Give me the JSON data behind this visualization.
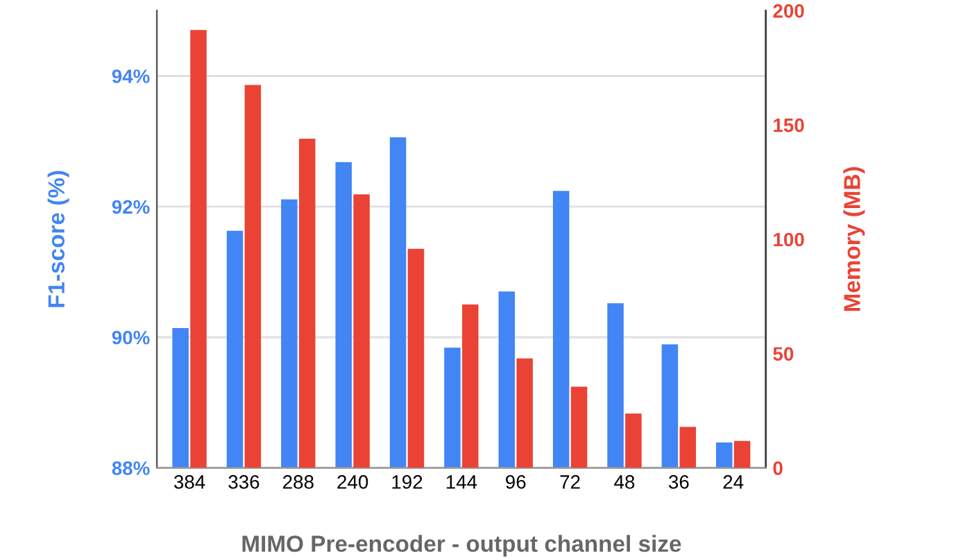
{
  "chart_data": {
    "type": "bar",
    "xlabel": "MIMO Pre-encoder - output channel size",
    "ylabel": "F1-score (%)",
    "y2label": "Memory (MB)",
    "categories": [
      "384",
      "336",
      "288",
      "240",
      "192",
      "144",
      "96",
      "72",
      "48",
      "36",
      "24"
    ],
    "series": [
      {
        "color": "#4285f4",
        "values": [
          90.14,
          91.63,
          92.11,
          92.68,
          93.06,
          89.84,
          90.7,
          92.24,
          90.52,
          89.89,
          88.39
        ]
      },
      {
        "color": "#ea4335",
        "axis": "y2",
        "values": [
          191.5,
          167.5,
          144,
          119.6,
          95.8,
          71.5,
          47.9,
          35.5,
          23.8,
          17.9,
          11.8
        ]
      }
    ],
    "ylim": [
      88,
      95
    ],
    "yticks": [
      {
        "value": 88,
        "label": "88%"
      },
      {
        "value": 90,
        "label": "90%"
      },
      {
        "value": 92,
        "label": "92%"
      },
      {
        "value": 94,
        "label": "94%"
      }
    ],
    "y2lim": [
      0,
      200
    ],
    "y2ticks": [
      0,
      50,
      100,
      150,
      200
    ],
    "grid": "y",
    "legend": false
  }
}
